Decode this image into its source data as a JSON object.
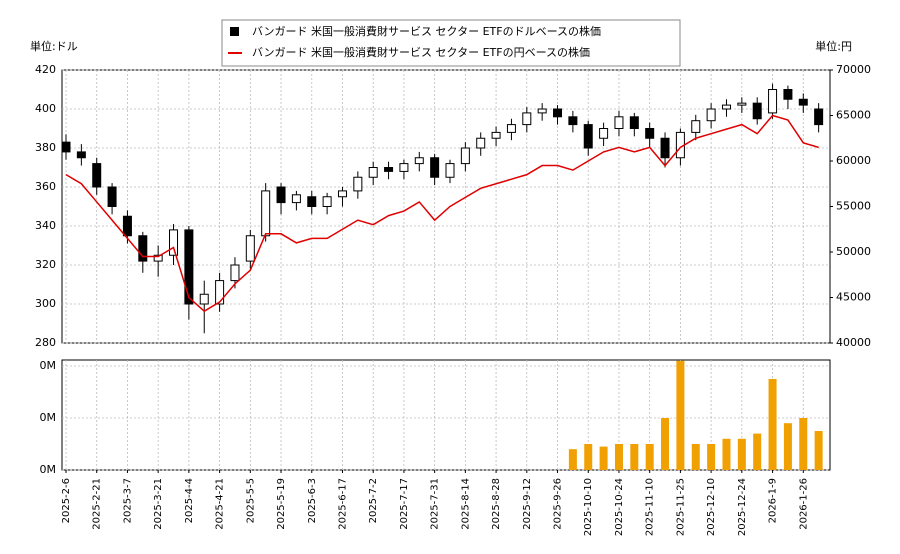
{
  "chart_data": [
    {
      "type": "candlestick",
      "name": "バンガード 米国一般消費財サービス セクター ETFのドルベースの株価",
      "color": "#000000",
      "open": [
        383,
        378,
        372,
        360,
        345,
        335,
        322,
        325,
        338,
        300,
        300,
        312,
        322,
        335,
        360,
        352,
        355,
        350,
        355,
        358,
        365,
        370,
        368,
        372,
        375,
        365,
        372,
        380,
        385,
        388,
        392,
        398,
        400,
        396,
        392,
        385,
        390,
        396,
        390,
        385,
        375,
        388,
        394,
        400,
        402,
        403,
        398,
        410,
        405,
        400
      ],
      "high": [
        387,
        382,
        375,
        362,
        348,
        337,
        330,
        341,
        340,
        312,
        316,
        324,
        338,
        362,
        362,
        358,
        358,
        357,
        360,
        368,
        373,
        373,
        374,
        378,
        377,
        374,
        383,
        388,
        391,
        395,
        401,
        403,
        402,
        399,
        394,
        393,
        399,
        398,
        393,
        388,
        390,
        397,
        403,
        405,
        406,
        406,
        413,
        412,
        408,
        403
      ],
      "low": [
        374,
        371,
        356,
        346,
        331,
        316,
        314,
        320,
        292,
        285,
        296,
        308,
        318,
        332,
        346,
        348,
        346,
        346,
        350,
        354,
        361,
        364,
        364,
        368,
        361,
        362,
        368,
        376,
        381,
        384,
        388,
        394,
        392,
        388,
        376,
        381,
        386,
        386,
        380,
        370,
        371,
        384,
        390,
        396,
        398,
        392,
        395,
        400,
        398,
        388
      ],
      "close": [
        378,
        375,
        360,
        350,
        335,
        322,
        325,
        338,
        300,
        305,
        312,
        320,
        335,
        358,
        352,
        356,
        350,
        355,
        358,
        365,
        370,
        368,
        372,
        375,
        365,
        372,
        380,
        385,
        388,
        392,
        398,
        400,
        396,
        392,
        380,
        390,
        396,
        390,
        385,
        375,
        388,
        394,
        400,
        402,
        403,
        395,
        410,
        405,
        402,
        392
      ],
      "series": [
        {
          "name": "バンガード 米国一般消費財サービス セクター ETFの円ベースの株価",
          "color": "#e00000",
          "axis": "y2",
          "values": [
            58500,
            57500,
            55500,
            53500,
            51500,
            49500,
            49500,
            50500,
            45000,
            43500,
            44500,
            46500,
            48000,
            52000,
            52000,
            51000,
            51500,
            51500,
            52500,
            53500,
            53000,
            54000,
            54500,
            55500,
            53500,
            55000,
            56000,
            57000,
            57500,
            58000,
            58500,
            59500,
            59500,
            59000,
            60000,
            61000,
            61500,
            61000,
            61500,
            59500,
            61500,
            62500,
            63000,
            63500,
            64000,
            63000,
            65000,
            64500,
            62000,
            61500
          ]
        }
      ],
      "y_label": "単位:ドル",
      "y2_label": "単位:円",
      "ylim": [
        280,
        420
      ],
      "yticks": [
        280,
        300,
        320,
        340,
        360,
        380,
        400,
        420
      ],
      "y2lim": [
        40000,
        70000
      ],
      "y2ticks": [
        40000,
        45000,
        50000,
        55000,
        60000,
        65000,
        70000
      ],
      "grid": true,
      "legend": "top"
    },
    {
      "type": "bar",
      "categories": [
        "2025-2-6",
        null,
        "2025-2-21",
        null,
        "2025-3-7",
        null,
        "2025-3-21",
        null,
        "2025-4-4",
        null,
        "2025-4-21",
        null,
        "2025-5-5",
        null,
        "2025-5-19",
        null,
        "2025-6-3",
        null,
        "2025-6-17",
        null,
        "2025-7-2",
        null,
        "2025-7-17",
        null,
        "2025-7-31",
        null,
        "2025-8-14",
        null,
        "2025-8-28",
        null,
        "2025-9-12",
        null,
        "2025-9-26",
        null,
        "2025-10-10",
        null,
        "2025-10-24",
        null,
        "2025-11-10",
        null,
        "2025-11-25",
        null,
        "2025-12-10",
        null,
        "2025-12-24",
        null,
        "2026-1-9",
        null,
        "2026-1-26",
        null
      ],
      "values": [
        null,
        null,
        null,
        null,
        null,
        null,
        null,
        null,
        null,
        null,
        null,
        null,
        null,
        null,
        null,
        null,
        null,
        null,
        null,
        null,
        null,
        null,
        null,
        null,
        null,
        null,
        null,
        null,
        null,
        null,
        null,
        null,
        null,
        0.08,
        0.1,
        0.09,
        0.1,
        0.1,
        0.1,
        0.2,
        0.42,
        0.1,
        0.1,
        0.12,
        0.12,
        0.14,
        0.35,
        0.18,
        0.2,
        0.15
      ],
      "color": "#f0a000",
      "ylim": [
        0,
        0.423
      ],
      "yticks": [
        {
          "value": 0,
          "label": "0M"
        },
        {
          "value": 0.2,
          "label": "0M"
        },
        {
          "value": 0.4,
          "label": "0M"
        }
      ],
      "grid": true
    }
  ]
}
